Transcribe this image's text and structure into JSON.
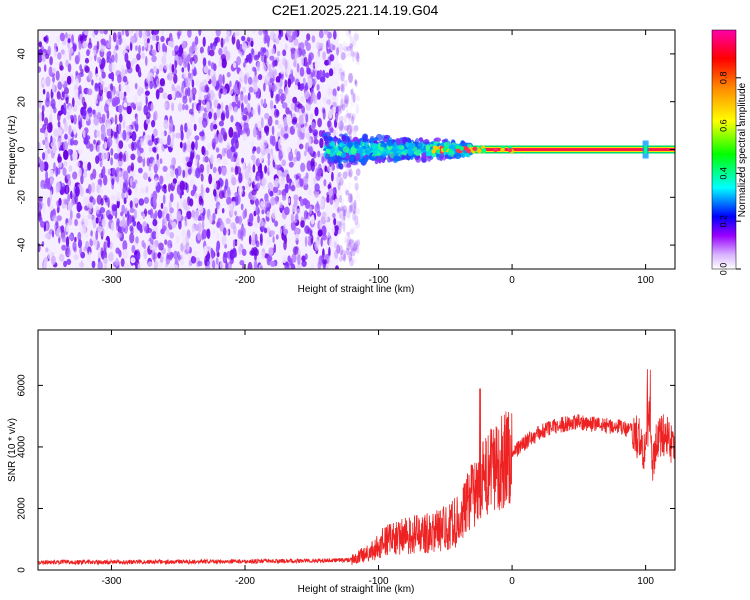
{
  "title": "C2E1.2025.221.14.19.G04",
  "chart_data": [
    {
      "type": "heatmap",
      "xlabel": "Height of straight line (km)",
      "ylabel": "Frequency (Hz)",
      "xlim": [
        -355,
        122
      ],
      "ylim": [
        -50,
        50
      ],
      "xticks": [
        -300,
        -200,
        -100,
        0,
        100
      ],
      "yticks": [
        -40,
        -20,
        0,
        20,
        40
      ],
      "colorbar": {
        "label": "Normalized spectral amplitude",
        "range": [
          0,
          1
        ],
        "ticks": [
          "0.0",
          "0.2",
          "0.4",
          "0.6",
          "0.8"
        ],
        "colormap": [
          "#ffffff",
          "#9900ff",
          "#0000ff",
          "#00ffff",
          "#00ff00",
          "#ffff00",
          "#ff8800",
          "#ff0000",
          "#ff00aa"
        ]
      },
      "regions": [
        {
          "x": [
            -355,
            -130
          ],
          "freq": [
            -50,
            50
          ],
          "amplitude": "0.05-0.25 (broadband noise)"
        },
        {
          "x": [
            -140,
            -30
          ],
          "freq": [
            -8,
            8
          ],
          "amplitude": "0.2-0.5"
        },
        {
          "x": [
            -30,
            122
          ],
          "freq": [
            -1,
            1
          ],
          "amplitude": "0.8-1.0 (carrier line at 0 Hz)"
        }
      ],
      "grid": false
    },
    {
      "type": "line",
      "xlabel": "Height of straight line (km)",
      "ylabel": "SNR (10 * v/v)",
      "xlim": [
        -355,
        122
      ],
      "ylim": [
        0,
        7800
      ],
      "xticks": [
        -300,
        -200,
        -100,
        0,
        100
      ],
      "yticks": [
        0,
        2000,
        4000,
        6000
      ],
      "series": [
        {
          "color": "#ee2222",
          "x": [
            -355,
            -300,
            -250,
            -200,
            -150,
            -120,
            -105,
            -95,
            -80,
            -65,
            -50,
            -40,
            -32,
            -25,
            -20,
            -15,
            -10,
            -5,
            0,
            10,
            20,
            30,
            40,
            50,
            60,
            70,
            80,
            90,
            95,
            100,
            103,
            105,
            108,
            112,
            118,
            122
          ],
          "y": [
            250,
            260,
            270,
            280,
            300,
            330,
            600,
            950,
            1100,
            1200,
            1350,
            1600,
            2300,
            2700,
            3000,
            3250,
            3500,
            3650,
            3800,
            4150,
            4450,
            4650,
            4750,
            4800,
            4750,
            4700,
            4650,
            4500,
            4250,
            3800,
            5200,
            3200,
            4300,
            4400,
            4300,
            3850
          ]
        }
      ],
      "grid": false
    }
  ]
}
